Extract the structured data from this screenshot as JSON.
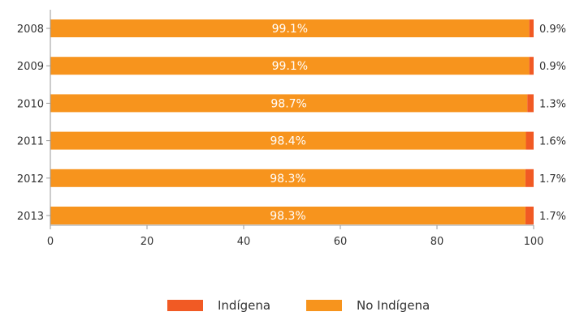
{
  "chart_data": {
    "type": "bar",
    "orientation": "horizontal",
    "stacked": true,
    "categories": [
      "2008",
      "2009",
      "2010",
      "2011",
      "2012",
      "2013"
    ],
    "series": [
      {
        "name": "No Indígena",
        "values": [
          99.1,
          99.1,
          98.7,
          98.4,
          98.3,
          98.3
        ],
        "labels": [
          "99.1%",
          "99.1%",
          "98.7%",
          "98.4%",
          "98.3%",
          "98.3%"
        ],
        "color": "#F7941D"
      },
      {
        "name": "Indígena",
        "values": [
          0.9,
          0.9,
          1.3,
          1.6,
          1.7,
          1.7
        ],
        "labels": [
          "0.9%",
          "0.9%",
          "1.3%",
          "1.6%",
          "1.7%",
          "1.7%"
        ],
        "color": "#F15A24"
      }
    ],
    "xlim": [
      0,
      100
    ],
    "xticks": [
      "0",
      "20",
      "40",
      "60",
      "80",
      "100"
    ],
    "grid": false,
    "legend_position": "bottom"
  },
  "legend": {
    "items": [
      {
        "name": "Indígena",
        "color": "#F15A24"
      },
      {
        "name": "No Indígena",
        "color": "#F7941D"
      }
    ]
  }
}
